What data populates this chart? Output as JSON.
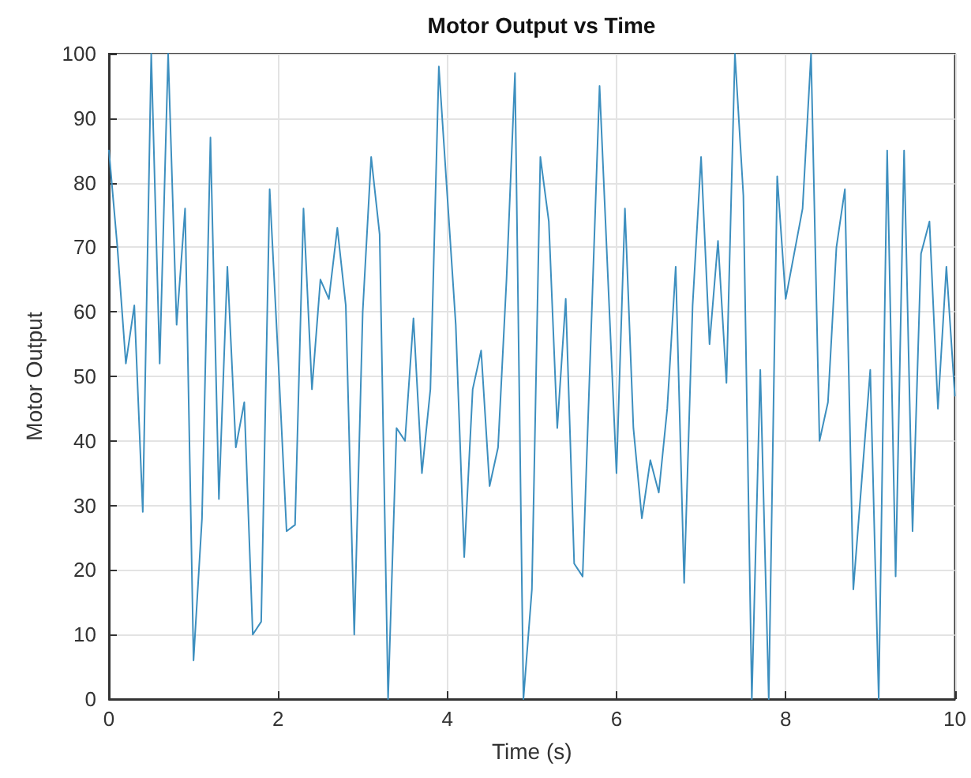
{
  "chart_data": {
    "type": "line",
    "title": "Motor Output vs Time",
    "xlabel": "Time (s)",
    "ylabel": "Motor Output",
    "x": [
      0,
      0.1,
      0.2,
      0.3,
      0.4,
      0.5,
      0.6,
      0.7,
      0.8,
      0.9,
      1,
      1.1,
      1.2,
      1.3,
      1.4,
      1.5,
      1.6,
      1.7,
      1.8,
      1.9,
      2,
      2.1,
      2.2,
      2.3,
      2.4,
      2.5,
      2.6,
      2.7,
      2.8,
      2.9,
      3,
      3.1,
      3.2,
      3.3,
      3.4,
      3.5,
      3.6,
      3.7,
      3.8,
      3.9,
      4,
      4.1,
      4.2,
      4.3,
      4.4,
      4.5,
      4.6,
      4.7,
      4.8,
      4.9,
      5,
      5.1,
      5.2,
      5.3,
      5.4,
      5.5,
      5.6,
      5.7,
      5.8,
      5.9,
      6,
      6.1,
      6.2,
      6.3,
      6.4,
      6.5,
      6.6,
      6.7,
      6.8,
      6.9,
      7,
      7.1,
      7.2,
      7.3,
      7.4,
      7.5,
      7.6,
      7.7,
      7.8,
      7.9,
      8,
      8.1,
      8.2,
      8.3,
      8.4,
      8.5,
      8.6,
      8.7,
      8.8,
      8.9,
      9,
      9.1,
      9.2,
      9.3,
      9.4,
      9.5,
      9.6,
      9.7,
      9.8,
      9.9,
      10
    ],
    "series": [
      {
        "color": "#3d8fbf",
        "values": [
          85,
          70,
          52,
          61,
          29,
          100,
          52,
          100,
          58,
          76,
          6,
          28,
          87,
          31,
          67,
          39,
          46,
          10,
          12,
          79,
          53,
          26,
          27,
          76,
          48,
          65,
          62,
          73,
          61,
          10,
          60,
          84,
          72,
          0,
          42,
          40,
          59,
          35,
          48,
          98,
          78,
          58,
          22,
          48,
          54,
          33,
          39,
          65,
          97,
          0,
          17,
          84,
          74,
          42,
          62,
          21,
          19,
          57,
          95,
          65,
          35,
          76,
          42,
          28,
          37,
          32,
          45,
          67,
          18,
          61,
          84,
          55,
          71,
          49,
          100,
          78,
          0,
          51,
          0,
          81,
          62,
          69,
          76,
          100,
          40,
          46,
          70,
          79,
          17,
          34,
          51,
          0,
          85,
          19,
          85,
          26,
          69,
          74,
          45,
          67,
          47
        ]
      }
    ],
    "xlim": [
      0,
      10
    ],
    "xticks": [
      0,
      2,
      4,
      6,
      8,
      10
    ],
    "ylim": [
      0,
      100
    ],
    "yticks": [
      0,
      10,
      20,
      30,
      40,
      50,
      60,
      70,
      80,
      90,
      100
    ],
    "grid": true,
    "marker": "none",
    "line_style": "solid"
  }
}
